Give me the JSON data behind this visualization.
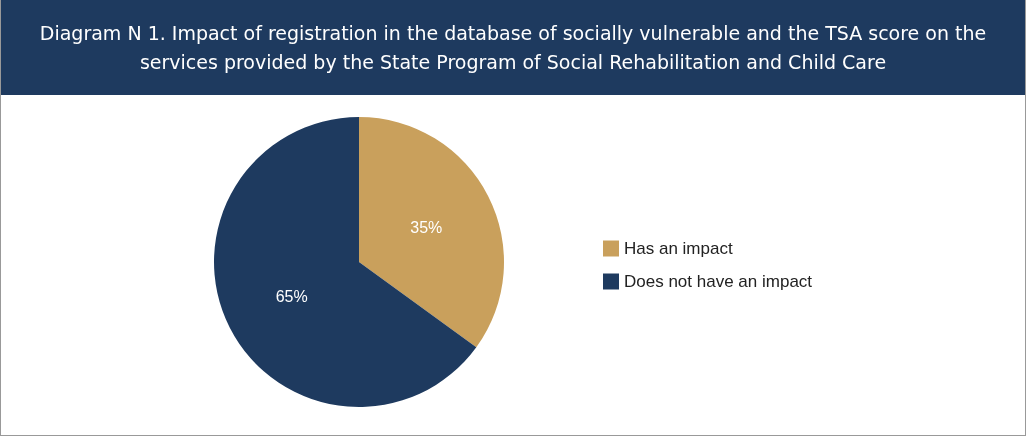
{
  "chart_data": {
    "type": "pie",
    "title": "Diagram N 1. Impact of registration in the database of socially vulnerable and the TSA score on the services provided by the State Program of Social Rehabilitation and Child Care",
    "categories": [
      "Has an impact",
      "Does not have an impact"
    ],
    "values": [
      35,
      65
    ],
    "colors": [
      "#c9a05c",
      "#1e3a5f"
    ],
    "value_labels": [
      "35%",
      "65%"
    ],
    "legend": "right"
  }
}
